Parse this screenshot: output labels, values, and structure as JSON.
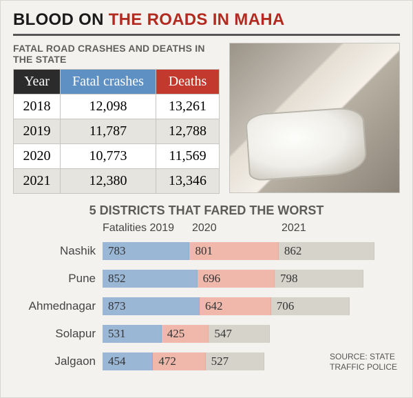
{
  "headline": {
    "part1": "BLOOD ON ",
    "part2": "THE ROADS IN MAHA"
  },
  "table": {
    "title": "FATAL ROAD CRASHES AND DEATHS IN THE STATE",
    "columns": [
      "Year",
      "Fatal crashes",
      "Deaths"
    ],
    "header_colors": {
      "year": "#2b2b2b",
      "crashes": "#5f90c4",
      "deaths": "#c3392e"
    },
    "rows": [
      {
        "year": "2018",
        "crashes": "12,098",
        "deaths": "13,261"
      },
      {
        "year": "2019",
        "crashes": "11,787",
        "deaths": "12,788"
      },
      {
        "year": "2020",
        "crashes": "10,773",
        "deaths": "11,569"
      },
      {
        "year": "2021",
        "crashes": "12,380",
        "deaths": "13,346"
      }
    ],
    "font_size": 20
  },
  "chart": {
    "type": "stacked-bar-horizontal",
    "title": "5 DISTRICTS THAT FARED THE WORST",
    "legend_prefix": "Fatalities ",
    "years": [
      "2019",
      "2020",
      "2021"
    ],
    "series_colors": {
      "2019": "#9bb7d6",
      "2020": "#f0b7ab",
      "2021": "#d6d3cb"
    },
    "max_total": 2600,
    "label_fontsize": 17,
    "value_fontsize": 17,
    "districts": [
      {
        "name": "Nashik",
        "values": [
          783,
          801,
          862
        ]
      },
      {
        "name": "Pune",
        "values": [
          852,
          696,
          798
        ]
      },
      {
        "name": "Ahmednagar",
        "values": [
          873,
          642,
          706
        ]
      },
      {
        "name": "Solapur",
        "values": [
          531,
          425,
          547
        ]
      },
      {
        "name": "Jalgaon",
        "values": [
          454,
          472,
          527
        ]
      }
    ]
  },
  "source": {
    "label": "SOURCE: STATE",
    "label2": "TRAFFIC POLICE"
  },
  "palette": {
    "bg": "#f3f2ef",
    "rule": "#555555",
    "text": "#333333"
  }
}
